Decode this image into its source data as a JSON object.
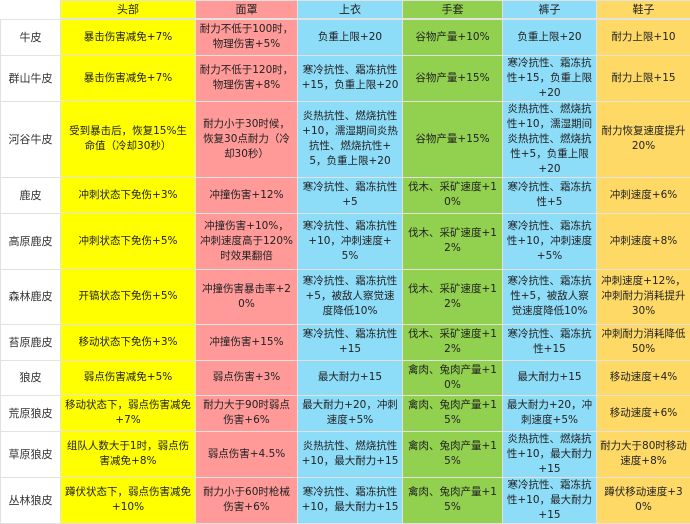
{
  "headers": [
    "",
    "头部",
    "面罩",
    "上衣",
    "手套",
    "裤子",
    "鞋子"
  ],
  "column_colors": [
    "#ffff00",
    "#ff9a99",
    "#8ddcf8",
    "#92d050",
    "#8ddcf8",
    "#ffd966"
  ],
  "rows": [
    {
      "name": "牛皮",
      "cells": [
        "暴击伤害减免+7%",
        "耐力不低于100时，物理伤害+5%",
        "负重上限+20",
        "谷物产量+10%",
        "负重上限+20",
        "耐力上限+10"
      ]
    },
    {
      "name": "群山牛皮",
      "cells": [
        "暴击伤害减免+7%",
        "耐力不低于120时，物理伤害+8%",
        "寒冷抗性、霜冻抗性+15，负重上限+20",
        "谷物产量+15%",
        "寒冷抗性、霜冻抗性+15，负重上限+20",
        "耐力上限+15"
      ]
    },
    {
      "name": "河谷牛皮",
      "cells": [
        "受到暴击后，恢复15%生命值（冷却30秒）",
        "耐力小于30时候，恢复30点耐力（冷却30秒）",
        "炎热抗性、燃烧抗性+10，濡湿期间炎热抗性、燃烧抗性+5，负重上限+20",
        "谷物产量+15%",
        "炎热抗性、燃烧抗性+10，濡湿期间炎热抗性、燃烧抗性+5，负重上限+20",
        "耐力恢复速度提升20%"
      ]
    },
    {
      "name": "鹿皮",
      "cells": [
        "冲刺状态下免伤+3%",
        "冲撞伤害+12%",
        "寒冷抗性、霜冻抗性+5",
        "伐木、采矿速度+10%",
        "寒冷抗性、霜冻抗性+5",
        "冲刺速度+6%"
      ]
    },
    {
      "name": "高原鹿皮",
      "cells": [
        "冲刺状态下免伤+5%",
        "冲撞伤害+10%，冲刺速度高于120%时效果翻倍",
        "寒冷抗性、霜冻抗性+10，冲刺速度+5%",
        "伐木、采矿速度+12%",
        "寒冷抗性、霜冻抗性+10，冲刺速度+5%",
        "冲刺速度+8%"
      ]
    },
    {
      "name": "森林鹿皮",
      "cells": [
        "开镐状态下免伤+5%",
        "冲撞伤害暴击率+20%",
        "寒冷抗性、霜冻抗性+5，被敌人察觉速度降低10%",
        "伐木、采矿速度+12%",
        "寒冷抗性、霜冻抗性+5，被敌人察觉速度降低10%",
        "冲刺速度+12%，冲刺耐力消耗提升30%"
      ]
    },
    {
      "name": "苔原鹿皮",
      "cells": [
        "移动状态下免伤+3%",
        "冲撞伤害+15%",
        "寒冷抗性、霜冻抗性+15",
        "伐木、采矿速度+12%",
        "寒冷抗性、霜冻抗性+15",
        "冲刺耐力消耗降低50%"
      ]
    },
    {
      "name": "狼皮",
      "cells": [
        "弱点伤害减免+5%",
        "弱点伤害+3%",
        "最大耐力+15",
        "禽肉、兔肉产量+10%",
        "最大耐力+15",
        "移动速度+4%"
      ]
    },
    {
      "name": "荒原狼皮",
      "cells": [
        "移动状态下，弱点伤害减免+7%",
        "耐力大于90时弱点伤害+6%",
        "最大耐力+20，冲刺速度+5%",
        "禽肉、兔肉产量+15%",
        "最大耐力+20，冲刺速度+5%",
        "移动速度+6%"
      ]
    },
    {
      "name": "草原狼皮",
      "cells": [
        "组队人数大于1时，弱点伤害减免+8%",
        "弱点伤害+4.5%",
        "炎热抗性、燃烧抗性+10，最大耐力+15",
        "禽肉、兔肉产量+15%",
        "炎热抗性、燃烧抗性+10，最大耐力+15",
        "耐力大于80时移动速度+8%"
      ]
    },
    {
      "name": "丛林狼皮",
      "cells": [
        "蹲伏状态下，弱点伤害减免+10%",
        "耐力小于60时枪械伤害+6%",
        "寒冷抗性、霜冻抗性+10，最大耐力+15",
        "禽肉、兔肉产量+15%",
        "寒冷抗性、霜冻抗性+10，最大耐力+15",
        "蹲伏移动速度+30%"
      ]
    }
  ]
}
